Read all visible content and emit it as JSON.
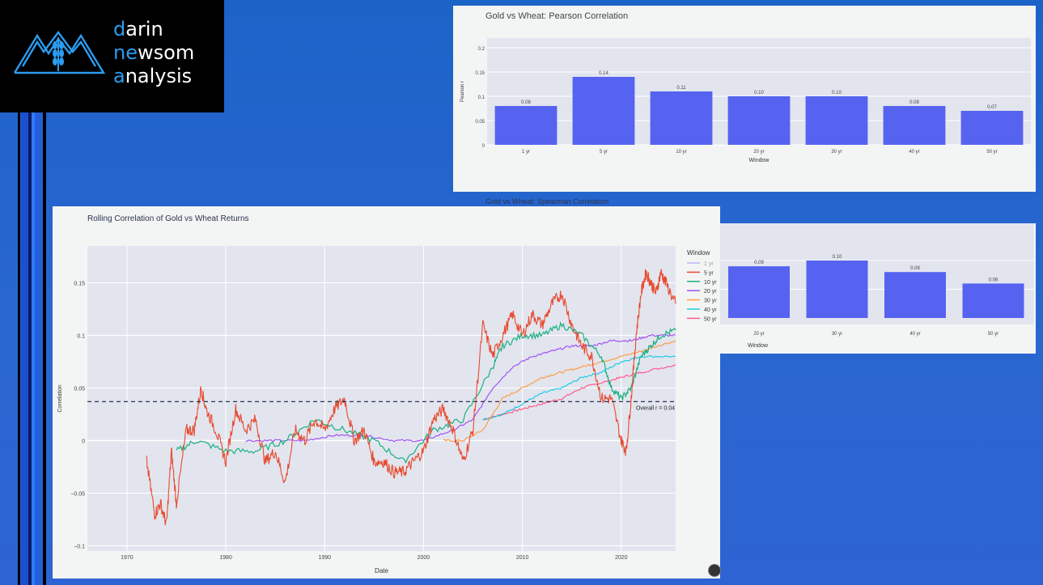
{
  "logo": {
    "line1_accent": "d",
    "line1_rest": "arin",
    "line2_accent": "ne",
    "line2_mid": "w",
    "line2_rest": "som",
    "line3_accent": "a",
    "line3_rest": "nalysis"
  },
  "colors": {
    "bar": "#5563f0",
    "series": {
      "1 yr": "#b9b4f4",
      "5 yr": "#e8492d",
      "10 yr": "#19b081",
      "20 yr": "#a352f3",
      "30 yr": "#ff9d46",
      "40 yr": "#1ecbe6",
      "50 yr": "#ff5b8b"
    }
  },
  "chart_data": [
    {
      "type": "bar",
      "title": "Gold vs Wheat: Pearson Correlation",
      "xlabel": "Window",
      "ylabel": "Pearson r",
      "categories": [
        "1 yr",
        "5 yr",
        "10 yr",
        "20 yr",
        "30 yr",
        "40 yr",
        "50 yr"
      ],
      "values": [
        0.08,
        0.14,
        0.11,
        0.1,
        0.1,
        0.08,
        0.07
      ],
      "value_labels": [
        "0.08",
        "0.14",
        "0.11",
        "0.10",
        "0.10",
        "0.08",
        "0.07"
      ],
      "yticks": [
        "0",
        "0.05",
        "0.1",
        "0.15",
        "0.2"
      ],
      "ylim": [
        0,
        0.22
      ]
    },
    {
      "type": "bar",
      "title": "Gold vs Wheat: Spearman Correlation",
      "xlabel": "Window",
      "categories_visible": [
        "20 yr",
        "30 yr",
        "40 yr",
        "50 yr"
      ],
      "values": [
        0.09,
        0.1,
        0.08,
        0.06
      ],
      "value_labels": [
        "0.09",
        "0.10",
        "0.08",
        "0.06"
      ]
    },
    {
      "type": "line",
      "title": "Rolling Correlation of Gold vs Wheat Returns",
      "xlabel": "Date",
      "ylabel": "Correlation",
      "legend_title": "Window",
      "legend_position": "right",
      "xlim": [
        1966,
        2025.5
      ],
      "ylim": [
        -0.105,
        0.185
      ],
      "xticks": [
        "1970",
        "1980",
        "1990",
        "2000",
        "2010",
        "2020"
      ],
      "yticks": [
        {
          "v": -0.1,
          "label": "−0.1"
        },
        {
          "v": -0.05,
          "label": "−0.05"
        },
        {
          "v": 0,
          "label": "0"
        },
        {
          "v": 0.05,
          "label": "0.05"
        },
        {
          "v": 0.1,
          "label": "0.1"
        },
        {
          "v": 0.15,
          "label": "0.15"
        }
      ],
      "reference_line": {
        "y": 0.037,
        "label": "Overall r = 0.04"
      },
      "series": [
        {
          "name": "1 yr",
          "x": [],
          "y": []
        },
        {
          "name": "5 yr",
          "x": [
            1972,
            1972.8,
            1973.4,
            1974,
            1974.5,
            1975,
            1976,
            1976.8,
            1977.5,
            1978,
            1979,
            1980,
            1981,
            1982,
            1983,
            1984,
            1985,
            1986,
            1987,
            1988,
            1989,
            1990,
            1991,
            1992,
            1993,
            1994,
            1995,
            1996,
            1997,
            1998,
            1999,
            2000,
            2001,
            2002,
            2003,
            2004,
            2005,
            2006,
            2007,
            2008,
            2009,
            2010,
            2011,
            2012,
            2013,
            2014,
            2015,
            2016,
            2017,
            2018,
            2019,
            2020,
            2020.5,
            2021,
            2021.5,
            2022,
            2022.5,
            2023,
            2023.5,
            2024,
            2024.5,
            2025.5
          ],
          "y": [
            -0.02,
            -0.07,
            -0.06,
            -0.08,
            -0.01,
            -0.06,
            0.01,
            0.01,
            0.05,
            0.03,
            0.01,
            -0.02,
            0.03,
            0.01,
            0.02,
            -0.02,
            -0.01,
            -0.04,
            0.01,
            0.0,
            0.02,
            0.01,
            0.03,
            0.04,
            0.0,
            0.01,
            -0.02,
            -0.02,
            -0.03,
            -0.03,
            -0.02,
            -0.01,
            0.02,
            0.03,
            0.01,
            -0.02,
            0.01,
            0.11,
            0.08,
            0.1,
            0.12,
            0.1,
            0.12,
            0.11,
            0.13,
            0.14,
            0.11,
            0.09,
            0.08,
            0.04,
            0.04,
            0.0,
            -0.01,
            0.04,
            0.1,
            0.14,
            0.16,
            0.15,
            0.14,
            0.16,
            0.15,
            0.13
          ]
        },
        {
          "name": "10 yr",
          "x": [
            1975,
            1977,
            1980,
            1983,
            1986,
            1989,
            1992,
            1995,
            1998,
            2001,
            2004,
            2007,
            2008,
            2010,
            2012,
            2014,
            2016,
            2018,
            2019,
            2020,
            2021,
            2022,
            2023,
            2024,
            2025.5
          ],
          "y": [
            -0.01,
            0.0,
            -0.01,
            -0.01,
            0.0,
            0.02,
            0.01,
            0.0,
            -0.02,
            0.01,
            0.02,
            0.07,
            0.09,
            0.1,
            0.1,
            0.11,
            0.1,
            0.08,
            0.05,
            0.04,
            0.05,
            0.08,
            0.09,
            0.1,
            0.105
          ]
        },
        {
          "name": "20 yr",
          "x": [
            1982,
            1985,
            1988,
            1991,
            1994,
            1997,
            2000,
            2003,
            2005,
            2007,
            2009,
            2011,
            2013,
            2015,
            2017,
            2019,
            2021,
            2023,
            2025.5
          ],
          "y": [
            0.0,
            0.0,
            0.0,
            0.005,
            0.005,
            0.0,
            0.0,
            0.01,
            0.02,
            0.05,
            0.07,
            0.08,
            0.085,
            0.09,
            0.09,
            0.095,
            0.095,
            0.1,
            0.1
          ]
        },
        {
          "name": "30 yr",
          "x": [
            2002,
            2004,
            2006,
            2008,
            2010,
            2012,
            2014,
            2016,
            2018,
            2020,
            2022,
            2025.5
          ],
          "y": [
            0.0,
            0.0,
            0.01,
            0.04,
            0.05,
            0.06,
            0.065,
            0.07,
            0.075,
            0.08,
            0.085,
            0.095
          ]
        },
        {
          "name": "40 yr",
          "x": [
            2006,
            2008,
            2010,
            2012,
            2014,
            2016,
            2018,
            2020,
            2022,
            2025.5
          ],
          "y": [
            0.02,
            0.025,
            0.035,
            0.045,
            0.05,
            0.06,
            0.065,
            0.075,
            0.08,
            0.08
          ]
        },
        {
          "name": "50 yr",
          "x": [
            2006,
            2008,
            2010,
            2012,
            2014,
            2016,
            2018,
            2020,
            2022,
            2025.5
          ],
          "y": [
            0.02,
            0.025,
            0.03,
            0.035,
            0.04,
            0.05,
            0.055,
            0.06,
            0.065,
            0.072
          ]
        }
      ]
    }
  ]
}
